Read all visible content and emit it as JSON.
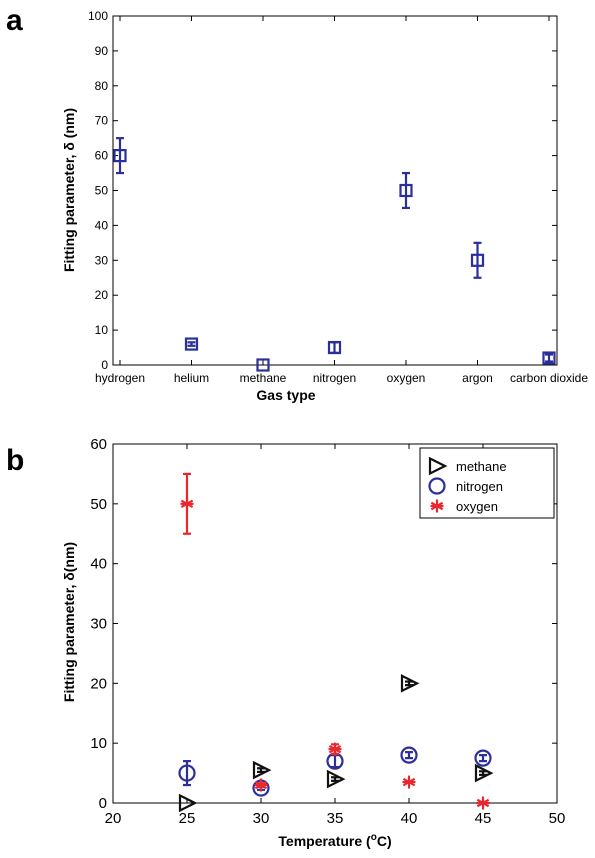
{
  "chart_data": [
    {
      "panel_label": "a",
      "type": "scatter",
      "categories": [
        "hydrogen",
        "helium",
        "methane",
        "nitrogen",
        "oxygen",
        "argon",
        "carbon dioxide"
      ],
      "series": [
        {
          "values": [
            60,
            6,
            0,
            5,
            50,
            30,
            2
          ],
          "errors": [
            5,
            0.5,
            0,
            1.5,
            5,
            5,
            1
          ],
          "marker": "square",
          "color": "#2b2f9a"
        }
      ],
      "xlabel": "Gas type",
      "ylabel": "Fitting parameter, δ (nm)",
      "ylim": [
        0,
        100
      ],
      "yticks": [
        0,
        10,
        20,
        30,
        40,
        50,
        60,
        70,
        80,
        90,
        100
      ],
      "grid": false
    },
    {
      "panel_label": "b",
      "type": "scatter",
      "series": [
        {
          "name": "methane",
          "marker": "triangle-right",
          "color": "#111111",
          "x": [
            25,
            30,
            35,
            40,
            45
          ],
          "y": [
            0,
            5.5,
            4,
            20,
            5
          ],
          "errors": [
            0,
            0.3,
            0.3,
            0.3,
            0.3
          ]
        },
        {
          "name": "nitrogen",
          "marker": "circle",
          "color": "#2b2f9a",
          "x": [
            25,
            30,
            35,
            40,
            45
          ],
          "y": [
            5,
            2.5,
            7,
            8,
            7.5
          ],
          "errors": [
            2,
            0.3,
            1,
            0.5,
            0.5
          ]
        },
        {
          "name": "oxygen",
          "marker": "asterisk",
          "color": "#e8282e",
          "x": [
            25,
            30,
            35,
            40,
            45
          ],
          "y": [
            50,
            3,
            9,
            3.5,
            0
          ],
          "errors": [
            5,
            0.3,
            0.8,
            0,
            0
          ]
        }
      ],
      "xlabel": "Temperature (",
      "xlabel_super": "o",
      "xlabel_end": "C)",
      "ylabel": "Fitting parameter, δ(nm)",
      "xlim": [
        20,
        50
      ],
      "ylim": [
        0,
        60
      ],
      "xticks": [
        20,
        25,
        30,
        35,
        40,
        45,
        50
      ],
      "yticks": [
        0,
        10,
        20,
        30,
        40,
        50,
        60
      ],
      "legend_position": "top-right",
      "grid": false
    }
  ]
}
